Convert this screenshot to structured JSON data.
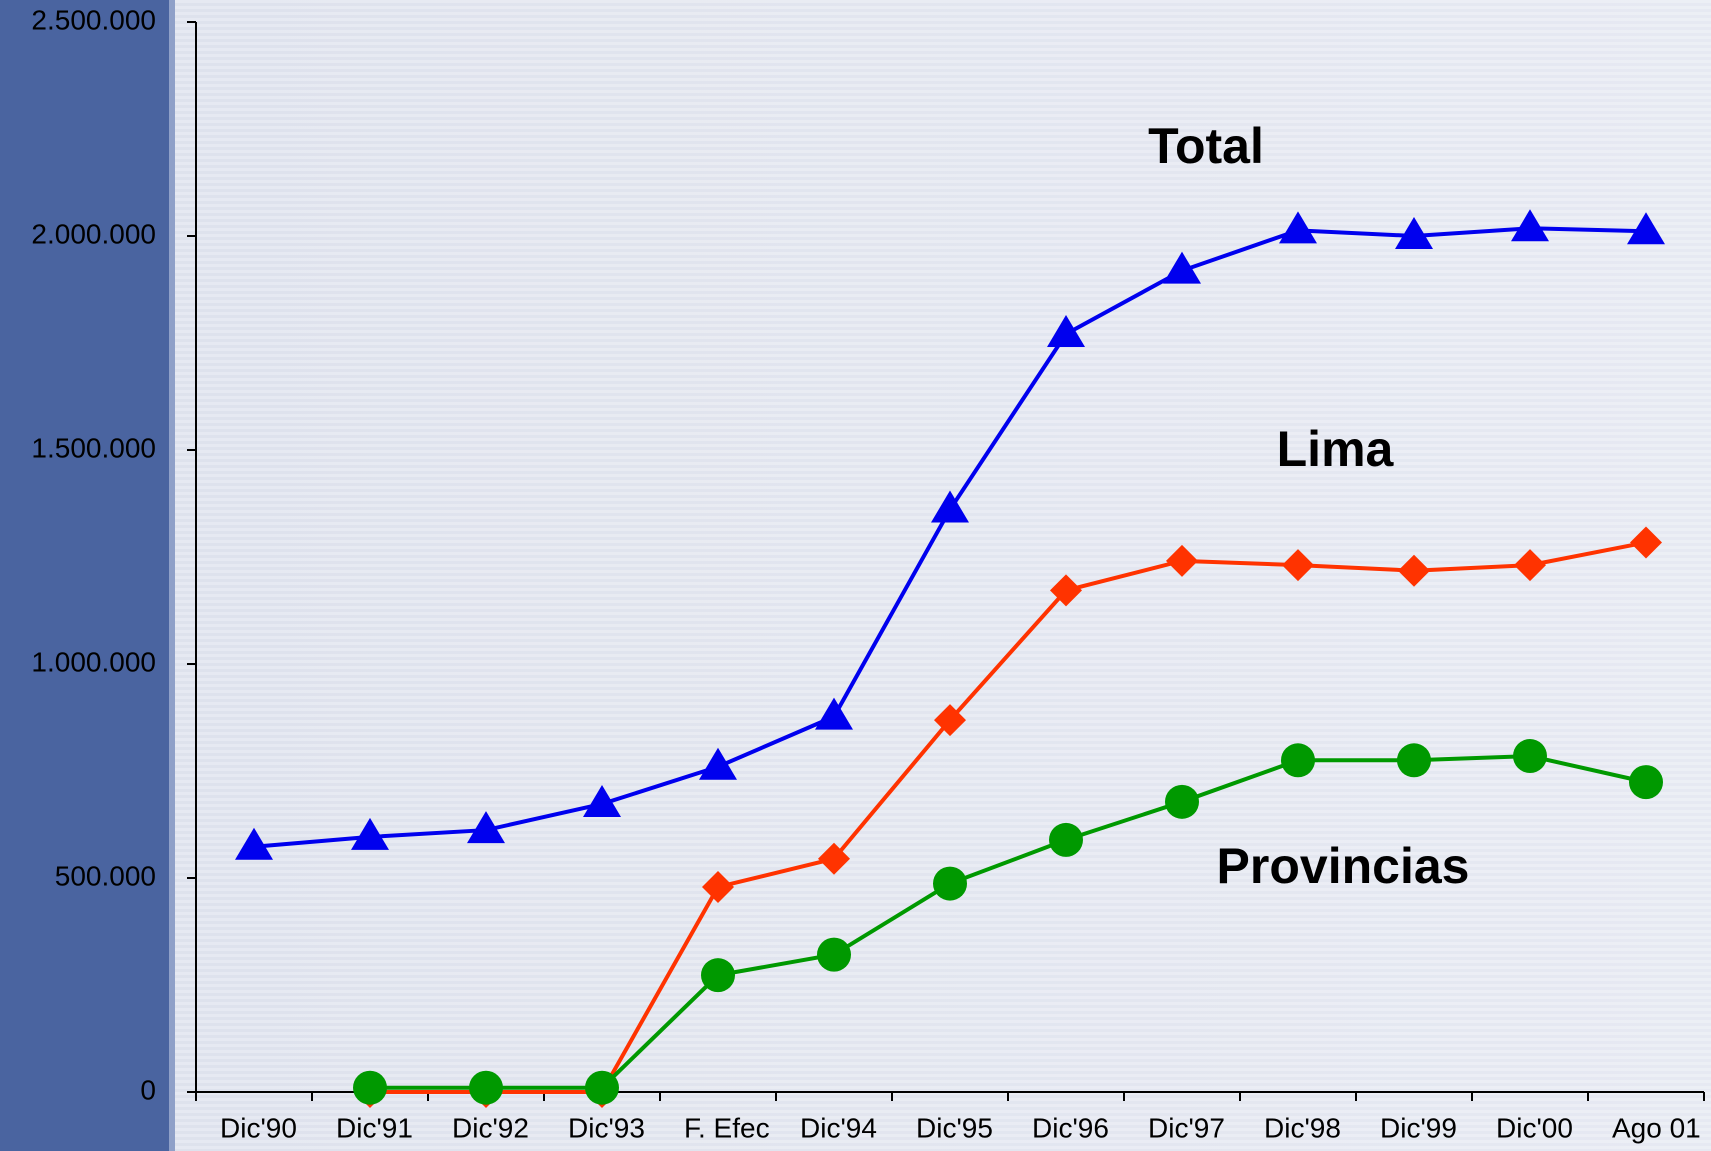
{
  "chart_data": {
    "type": "line",
    "categories": [
      "Dic'90",
      "Dic'91",
      "Dic'92",
      "Dic'93",
      "F. Efec",
      "Dic'94",
      "Dic'95",
      "Dic'96",
      "Dic'97",
      "Dic'98",
      "Dic'99",
      "Dic'00",
      "Ago 01"
    ],
    "series": [
      {
        "name": "Total",
        "color": "#0000ee",
        "marker": "triangle",
        "values": [
          573000,
          596000,
          612000,
          673000,
          760000,
          877000,
          1361000,
          1771000,
          1919000,
          2013000,
          2000000,
          2018000,
          2011000
        ]
      },
      {
        "name": "Lima",
        "color": "#ff3300",
        "marker": "diamond",
        "values": [
          null,
          0,
          0,
          0,
          479000,
          545000,
          869000,
          1172000,
          1241000,
          1231000,
          1218000,
          1231000,
          1284000
        ]
      },
      {
        "name": "Provincias",
        "color": "#009900",
        "marker": "circle",
        "values": [
          null,
          10000,
          10000,
          10000,
          273000,
          321000,
          487000,
          589000,
          678000,
          775000,
          775000,
          785000,
          724000
        ]
      }
    ],
    "ylim": [
      0,
      2500000
    ],
    "yticks": [
      0,
      {
        "value": 500000,
        "label": "500.000"
      },
      {
        "value": 1000000,
        "label": "1.000.000"
      },
      {
        "value": 1500000,
        "label": "1.500.000"
      },
      {
        "value": 2000000,
        "label": "2.000.000"
      },
      {
        "value": 2500000,
        "label": "2.500.000"
      }
    ]
  }
}
